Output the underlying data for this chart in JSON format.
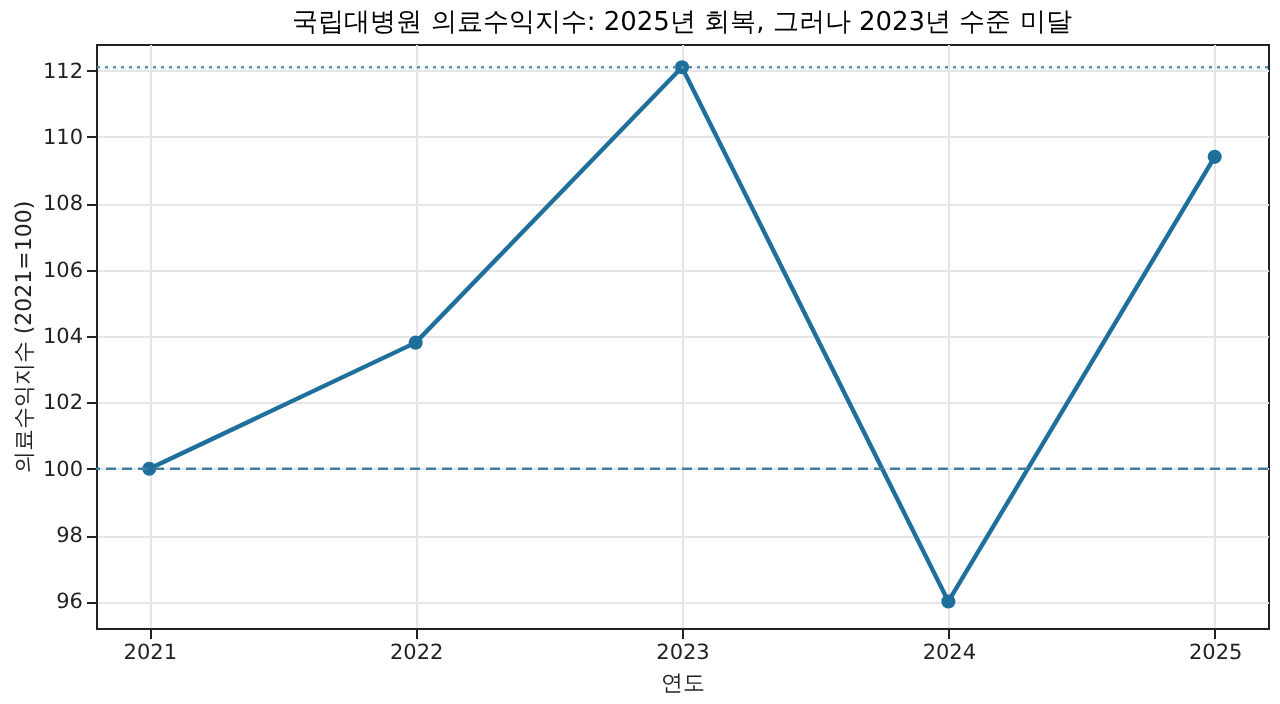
{
  "chart_data": {
    "type": "line",
    "title": "국립대병원 의료수익지수: 2025년 회복, 그러나 2023년 수준 미달",
    "xlabel": "연도",
    "ylabel": "의료수익지수 (2021=100)",
    "x": [
      2021,
      2022,
      2023,
      2024,
      2025
    ],
    "series": [
      {
        "color": "#1f6f9c",
        "values": [
          100,
          103.8,
          112.1,
          96,
          109.4
        ]
      }
    ],
    "xlim": [
      2020.8,
      2025.2
    ],
    "xticks": [
      2021,
      2022,
      2023,
      2024,
      2025
    ],
    "ylim": [
      95.2,
      112.8
    ],
    "yticks": [
      96,
      98,
      100,
      102,
      104,
      106,
      108,
      110,
      112
    ],
    "ref_lines": [
      {
        "axis": "y",
        "value": 100,
        "label": null,
        "color": "#3f7f9f",
        "line_style": "dashed"
      },
      {
        "axis": "y",
        "value": 112.1,
        "label": null,
        "color": "#5a8fb0",
        "line_style": "dotted"
      }
    ],
    "grid": true,
    "marker": "circle",
    "line_style": "solid"
  }
}
